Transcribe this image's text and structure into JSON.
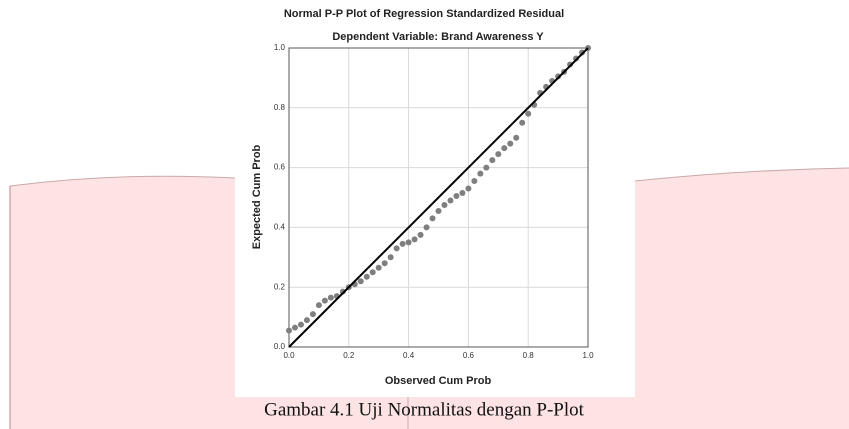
{
  "chart_data": {
    "type": "scatter",
    "title": "Normal P-P Plot of Regression Standardized Residual",
    "subtitle": "Dependent Variable: Brand Awareness Y",
    "x_label": "Observed Cum Prob",
    "y_label": "Expected Cum Prob",
    "x": [
      0.0,
      0.02,
      0.04,
      0.06,
      0.08,
      0.1,
      0.12,
      0.14,
      0.16,
      0.18,
      0.2,
      0.22,
      0.24,
      0.26,
      0.28,
      0.3,
      0.32,
      0.34,
      0.36,
      0.38,
      0.4,
      0.42,
      0.44,
      0.46,
      0.48,
      0.5,
      0.52,
      0.54,
      0.56,
      0.58,
      0.6,
      0.62,
      0.64,
      0.66,
      0.68,
      0.7,
      0.72,
      0.74,
      0.76,
      0.78,
      0.8,
      0.82,
      0.84,
      0.86,
      0.88,
      0.9,
      0.92,
      0.94,
      0.96,
      0.98,
      1.0
    ],
    "values": [
      0.055,
      0.065,
      0.075,
      0.09,
      0.11,
      0.14,
      0.155,
      0.165,
      0.17,
      0.185,
      0.2,
      0.21,
      0.22,
      0.235,
      0.25,
      0.265,
      0.28,
      0.3,
      0.33,
      0.345,
      0.35,
      0.36,
      0.375,
      0.4,
      0.43,
      0.455,
      0.475,
      0.49,
      0.505,
      0.515,
      0.53,
      0.555,
      0.58,
      0.6,
      0.625,
      0.645,
      0.665,
      0.68,
      0.7,
      0.75,
      0.78,
      0.81,
      0.85,
      0.87,
      0.89,
      0.905,
      0.92,
      0.945,
      0.965,
      0.985,
      1.0
    ],
    "color": "#7f7f7f",
    "xlim": [
      0,
      1
    ],
    "ylim": [
      0,
      1
    ],
    "xticks": [
      {
        "value": 0,
        "label": "0.0"
      },
      0.2,
      0.4,
      0.6,
      0.8,
      {
        "value": 1,
        "label": "1.0"
      }
    ],
    "yticks": [
      {
        "value": 0,
        "label": "0.0"
      },
      0.2,
      0.4,
      0.6,
      0.8,
      {
        "value": 1,
        "label": "1.0"
      }
    ],
    "grid": true
  },
  "caption": "Gambar 4.1 Uji Normalitas dengan P-Plot"
}
